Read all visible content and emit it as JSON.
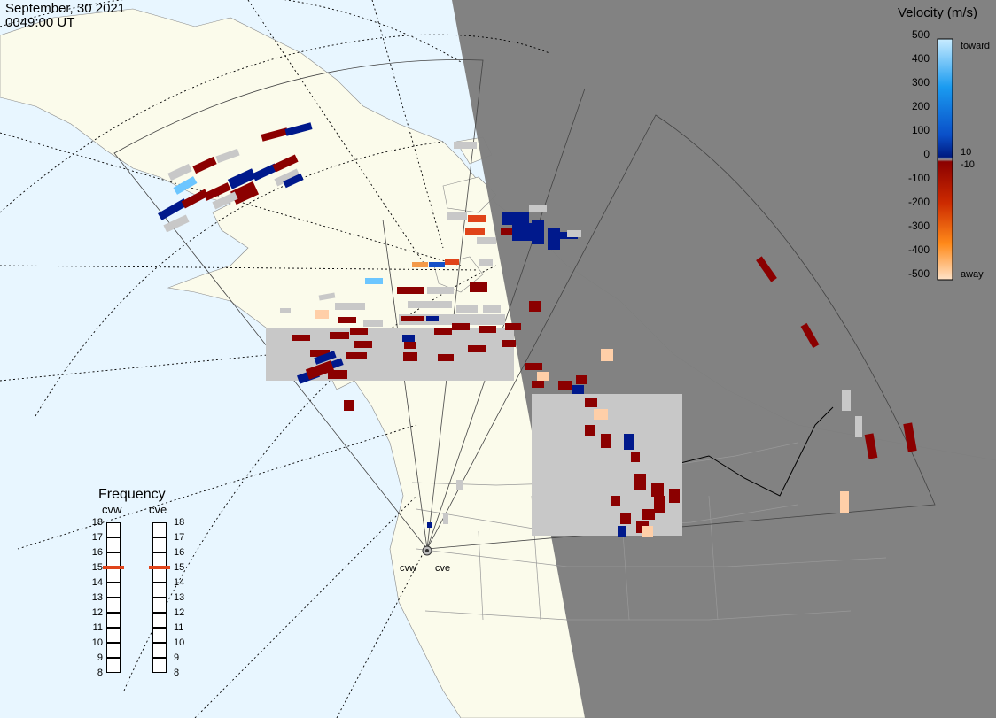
{
  "header": {
    "date": "September, 30 2021",
    "time": "0049:00 UT"
  },
  "colorbar": {
    "title": "Velocity (m/s)",
    "ticks": [
      "500",
      "400",
      "300",
      "200",
      "100",
      "0",
      "-100",
      "-200",
      "-300",
      "-400",
      "-500"
    ],
    "side_labels": [
      "toward",
      "10",
      "-10",
      "away"
    ]
  },
  "frequency": {
    "title": "Frequency",
    "radars": [
      {
        "label": "cvw",
        "value_mhz": 15
      },
      {
        "label": "cve",
        "value_mhz": 15
      }
    ],
    "scale": [
      "18",
      "17",
      "16",
      "15",
      "14",
      "13",
      "12",
      "11",
      "10",
      "9",
      "8"
    ]
  },
  "map_labels": {
    "radar_west": "cvw",
    "radar_east": "cve"
  },
  "colors": {
    "ocean": "#e8f6ff",
    "land": "#fbfbeb",
    "night": "#7e7e7e",
    "ground_scatter": "#c8c8c8",
    "away": "#8b0000",
    "toward": "#00198c",
    "freq_marker": "#e0441a"
  }
}
